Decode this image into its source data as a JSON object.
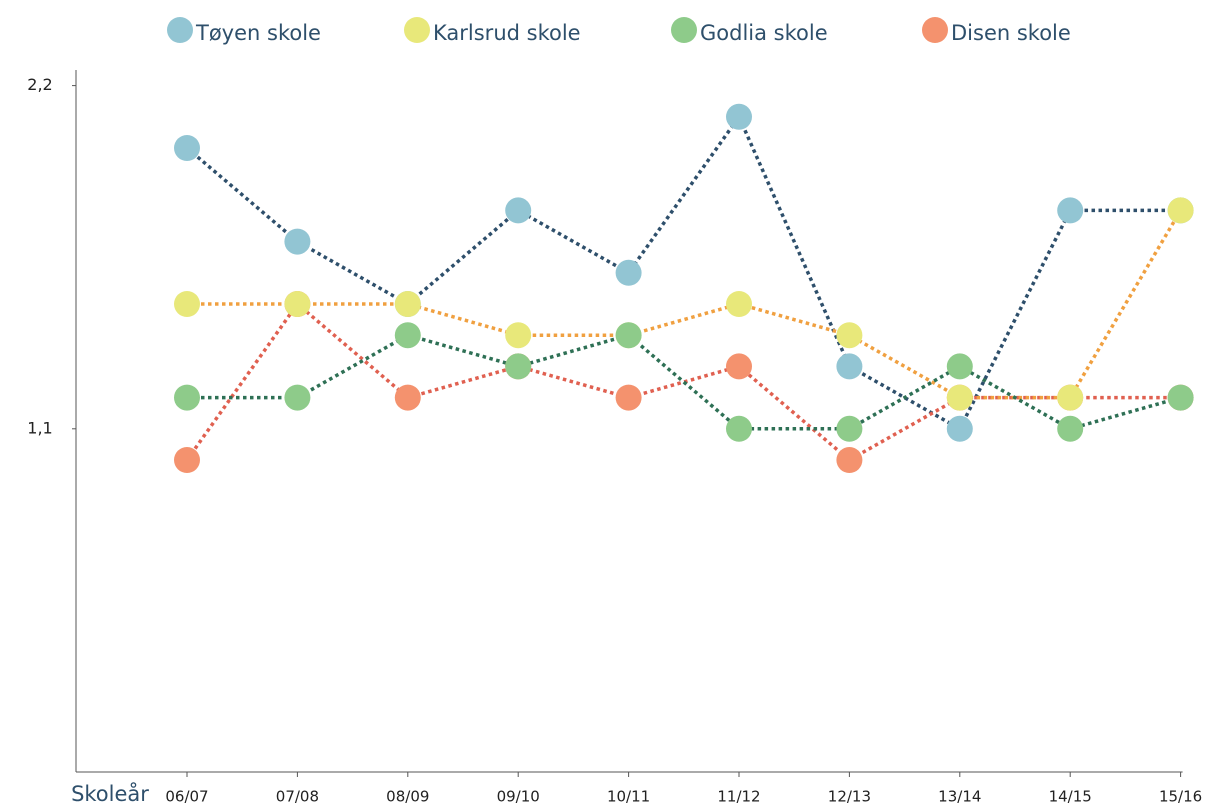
{
  "chart_data": {
    "type": "line",
    "x_label": "Skoleår",
    "categories": [
      "06/07",
      "07/08",
      "08/09",
      "09/10",
      "10/11",
      "11/12",
      "12/13",
      "13/14",
      "14/15",
      "15/16"
    ],
    "series": [
      {
        "name": "Tøyen skole",
        "color": "#2e4f6b",
        "marker_color": "#92c5d3",
        "values": [
          2.0,
          1.7,
          1.5,
          1.8,
          1.6,
          2.1,
          1.3,
          1.1,
          1.8,
          1.8
        ]
      },
      {
        "name": "Karlsrud skole",
        "color": "#f0a040",
        "marker_color": "#e8e87a",
        "values": [
          1.5,
          1.5,
          1.5,
          1.4,
          1.4,
          1.5,
          1.4,
          1.2,
          1.2,
          1.8
        ]
      },
      {
        "name": "Godlia skole",
        "color": "#2e7055",
        "marker_color": "#8ecb8a",
        "values": [
          1.2,
          1.2,
          1.4,
          1.3,
          1.4,
          1.1,
          1.1,
          1.3,
          1.1,
          1.2
        ]
      },
      {
        "name": "Disen skole",
        "color": "#e06050",
        "marker_color": "#f4926e",
        "values": [
          1.0,
          1.5,
          1.2,
          1.3,
          1.2,
          1.3,
          1.0,
          1.2,
          1.2,
          1.2
        ]
      }
    ],
    "ylim": [
      0,
      2.25
    ],
    "yticks": [
      {
        "value": 1.1,
        "label": "1,1"
      },
      {
        "value": 2.2,
        "label": "2,2"
      }
    ],
    "grid": false,
    "legend": "top"
  }
}
